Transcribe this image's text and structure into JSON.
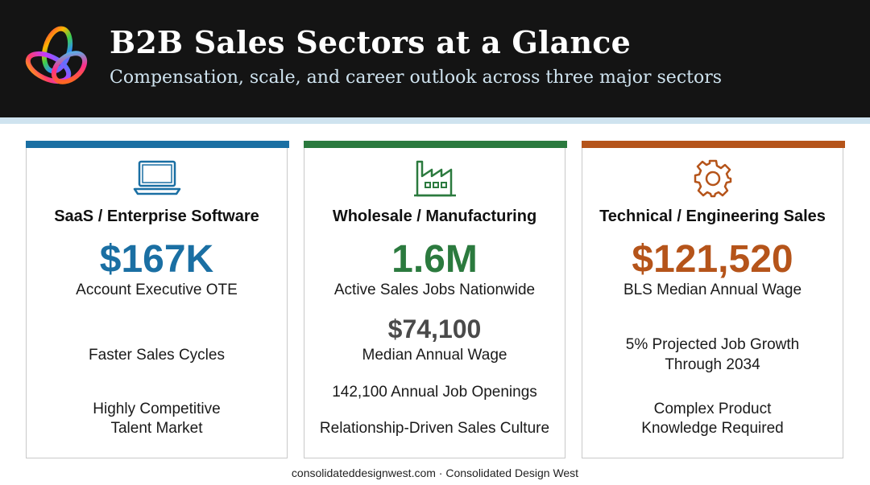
{
  "header": {
    "title": "B2B Sales Sectors at a Glance",
    "subtitle": "Compensation, scale, and career outlook across three major sectors"
  },
  "colors": {
    "saas": "#1a6fa3",
    "wholesale": "#2b7a3e",
    "technical": "#b5541a"
  },
  "cards": [
    {
      "icon": "laptop-icon",
      "title": "SaaS / Enterprise Software",
      "stat": "$167K",
      "stat_label": "Account Executive OTE",
      "point1": "Faster Sales Cycles",
      "point2_line1": "Highly Competitive",
      "point2_line2": "Talent Market"
    },
    {
      "icon": "factory-icon",
      "title": "Wholesale / Manufacturing",
      "stat": "1.6M",
      "stat_label": "Active Sales Jobs Nationwide",
      "secondary_stat": "$74,100",
      "secondary_label": "Median Annual Wage",
      "point1": "142,100 Annual Job Openings",
      "point2": "Relationship-Driven Sales Culture"
    },
    {
      "icon": "gear-icon",
      "title": "Technical / Engineering Sales",
      "stat": "$121,520",
      "stat_label": "BLS Median Annual Wage",
      "point1_line1": "5% Projected Job Growth",
      "point1_line2": "Through 2034",
      "point2_line1": "Complex Product",
      "point2_line2": "Knowledge Required"
    }
  ],
  "footer": "consolidateddesignwest.com · Consolidated Design West"
}
